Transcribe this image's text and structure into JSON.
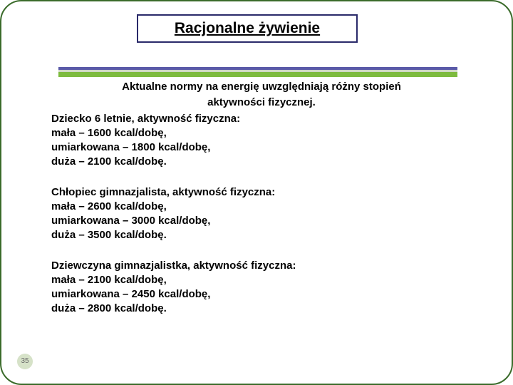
{
  "title": "Racjonalne żywienie",
  "colors": {
    "border": "#3a6b2a",
    "title_border": "#2a2a6a",
    "stripe_top": "#5a5aa8",
    "stripe_mid": "#cfd8c6",
    "stripe_bottom": "#7dbb3e",
    "page_badge_bg": "#d6e2c8",
    "page_badge_text": "#6a6a6a"
  },
  "intro": {
    "line1": "Aktualne normy na energię uwzględniają różny stopień",
    "line2": "aktywności fizycznej."
  },
  "groups": [
    {
      "heading": "Dziecko 6 letnie, aktywność fizyczna:",
      "lines": [
        "mała – 1600 kcal/dobę,",
        "umiarkowana – 1800 kcal/dobę,",
        "duża – 2100 kcal/dobę."
      ]
    },
    {
      "heading": "Chłopiec gimnazjalista, aktywność fizyczna:",
      "lines": [
        "mała – 2600 kcal/dobę,",
        "umiarkowana – 3000 kcal/dobę,",
        "duża – 3500 kcal/dobę."
      ]
    },
    {
      "heading": "Dziewczyna gimnazjalistka, aktywność fizyczna:",
      "lines": [
        "mała – 2100 kcal/dobę,",
        "umiarkowana – 2450 kcal/dobę,",
        "duża – 2800 kcal/dobę."
      ]
    }
  ],
  "page_number": "35"
}
